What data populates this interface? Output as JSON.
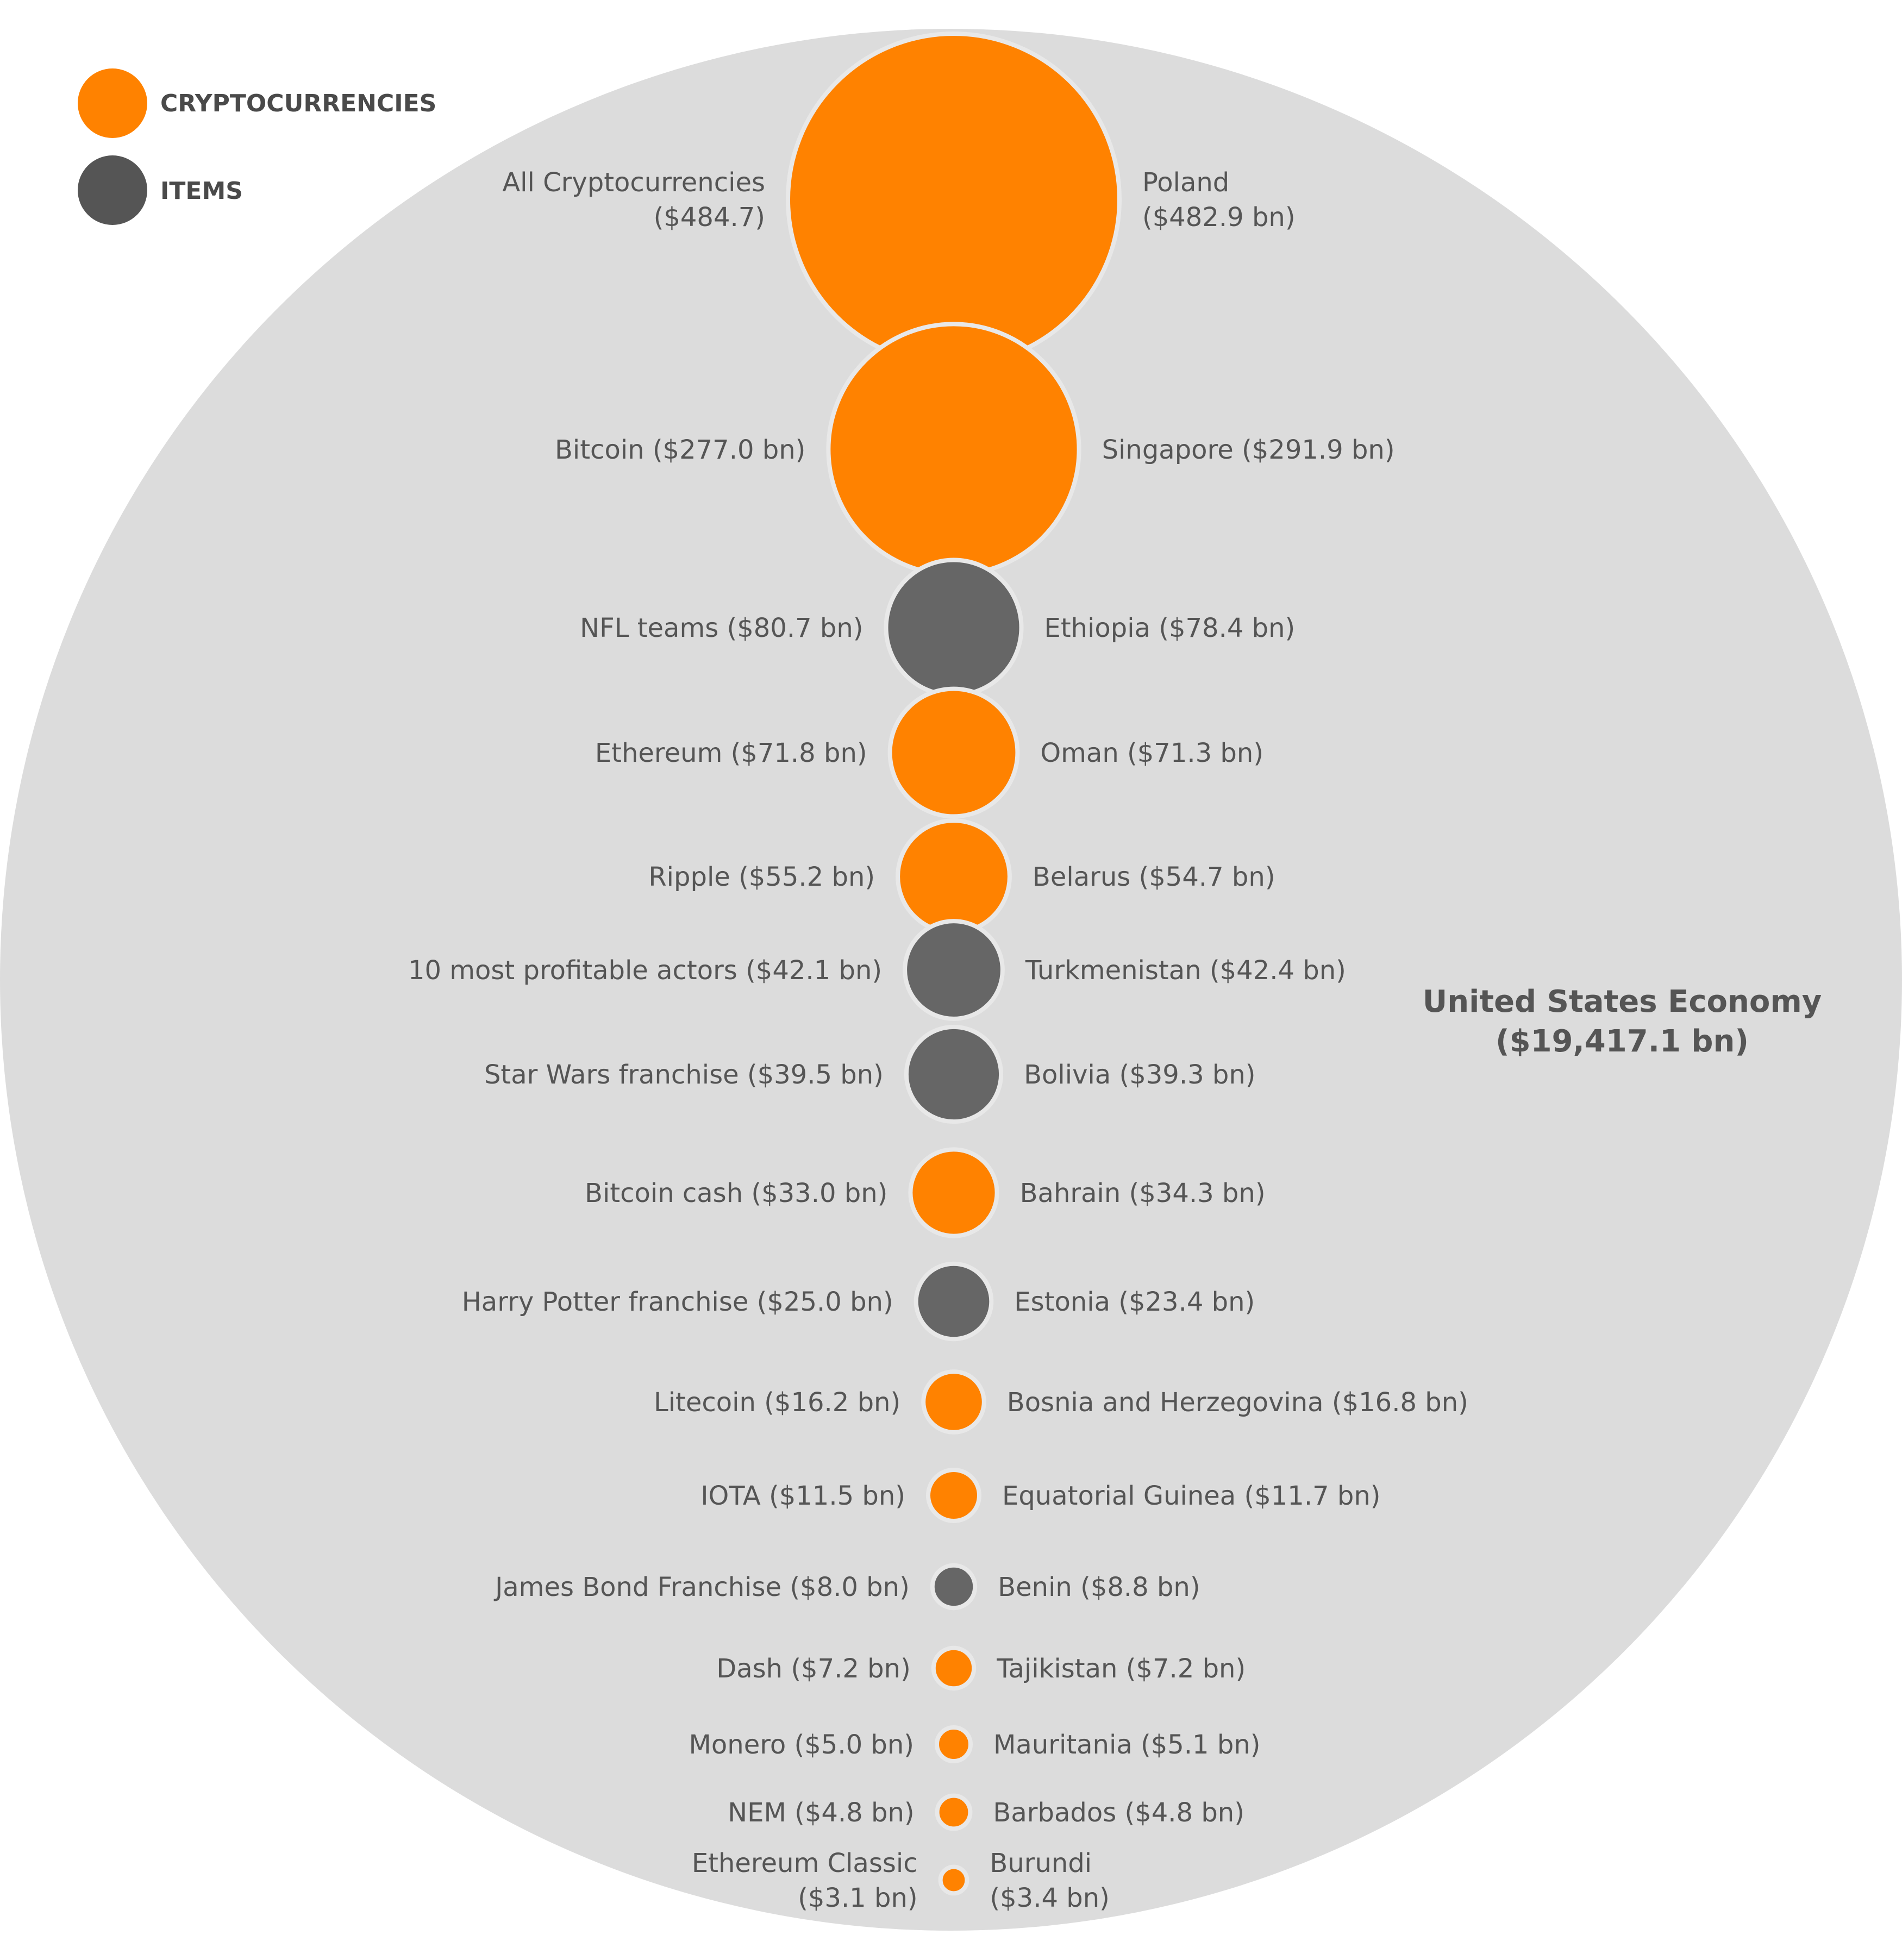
{
  "legend": {
    "cryptocurrencies": "CRYPTOCURRENCIES",
    "items": "ITEMS"
  },
  "background": {
    "label_line1": "United States Economy",
    "label_line2": "($19,417.1 bn)"
  },
  "colors": {
    "cryptocurrency": "#ff8200",
    "item": "#666666",
    "background_circle": "#dcdcdc",
    "text": "#555555"
  },
  "chart_data": {
    "type": "bubble",
    "background_value": 19417.1,
    "unit": "$ bn",
    "rows": [
      {
        "left": [
          "All Cryptocurrencies",
          "($484.7)"
        ],
        "right": [
          "Poland",
          "($482.9 bn)"
        ],
        "value": 484.7,
        "category": "cryptocurrency"
      },
      {
        "left": [
          "Bitcoin ($277.0 bn)"
        ],
        "right": [
          "Singapore ($291.9 bn)"
        ],
        "value": 277.0,
        "category": "cryptocurrency"
      },
      {
        "left": [
          "NFL teams ($80.7 bn)"
        ],
        "right": [
          "Ethiopia ($78.4 bn)"
        ],
        "value": 80.7,
        "category": "item"
      },
      {
        "left": [
          "Ethereum ($71.8 bn)"
        ],
        "right": [
          "Oman ($71.3 bn)"
        ],
        "value": 71.8,
        "category": "cryptocurrency"
      },
      {
        "left": [
          "Ripple ($55.2 bn)"
        ],
        "right": [
          "Belarus ($54.7 bn)"
        ],
        "value": 55.2,
        "category": "cryptocurrency"
      },
      {
        "left": [
          "10 most profitable actors ($42.1 bn)"
        ],
        "right": [
          "Turkmenistan ($42.4 bn)"
        ],
        "value": 42.1,
        "category": "item"
      },
      {
        "left": [
          "Star Wars franchise ($39.5 bn)"
        ],
        "right": [
          "Bolivia ($39.3 bn)"
        ],
        "value": 39.5,
        "category": "item"
      },
      {
        "left": [
          "Bitcoin cash ($33.0 bn)"
        ],
        "right": [
          "Bahrain ($34.3 bn)"
        ],
        "value": 33.0,
        "category": "cryptocurrency"
      },
      {
        "left": [
          "Harry Potter franchise ($25.0 bn)"
        ],
        "right": [
          "Estonia ($23.4 bn)"
        ],
        "value": 25.0,
        "category": "item"
      },
      {
        "left": [
          "Litecoin ($16.2 bn)"
        ],
        "right": [
          "Bosnia and Herzegovina ($16.8 bn)"
        ],
        "value": 16.2,
        "category": "cryptocurrency"
      },
      {
        "left": [
          "IOTA ($11.5 bn)"
        ],
        "right": [
          "Equatorial Guinea ($11.7 bn)"
        ],
        "value": 11.5,
        "category": "cryptocurrency"
      },
      {
        "left": [
          "James Bond Franchise ($8.0 bn)"
        ],
        "right": [
          "Benin ($8.8 bn)"
        ],
        "value": 8.0,
        "category": "item"
      },
      {
        "left": [
          "Dash ($7.2 bn)"
        ],
        "right": [
          "Tajikistan ($7.2 bn)"
        ],
        "value": 7.2,
        "category": "cryptocurrency"
      },
      {
        "left": [
          "Monero ($5.0 bn)"
        ],
        "right": [
          "Mauritania ($5.1 bn)"
        ],
        "value": 5.0,
        "category": "cryptocurrency"
      },
      {
        "left": [
          "NEM ($4.8 bn)"
        ],
        "right": [
          "Barbados ($4.8 bn)"
        ],
        "value": 4.8,
        "category": "cryptocurrency"
      },
      {
        "left": [
          "Ethereum Classic",
          "($3.1 bn)"
        ],
        "right": [
          "Burundi",
          "($3.4 bn)"
        ],
        "value": 3.1,
        "category": "cryptocurrency"
      }
    ]
  }
}
